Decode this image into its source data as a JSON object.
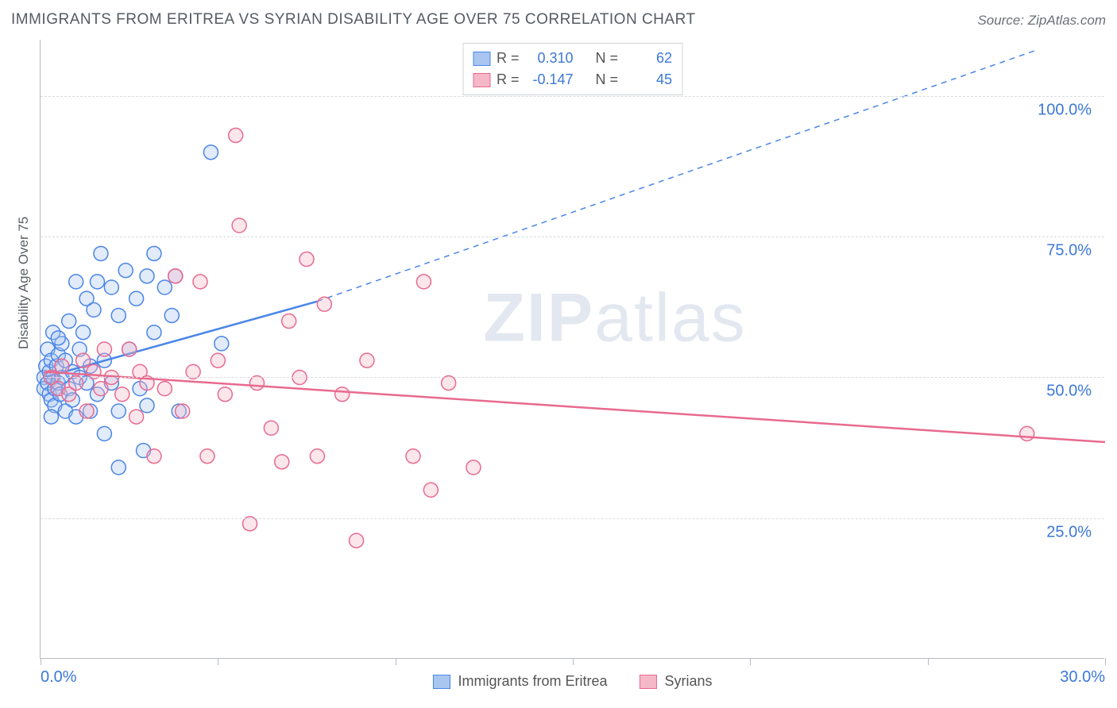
{
  "title": "IMMIGRANTS FROM ERITREA VS SYRIAN DISABILITY AGE OVER 75 CORRELATION CHART",
  "source": "Source: ZipAtlas.com",
  "watermark_a": "ZIP",
  "watermark_b": "atlas",
  "y_axis_title": "Disability Age Over 75",
  "chart": {
    "type": "scatter-with-regression",
    "xlim": [
      0,
      30
    ],
    "ylim": [
      0,
      110
    ],
    "x_ticks": [
      0,
      5,
      10,
      15,
      20,
      25,
      30
    ],
    "x_tick_labels": {
      "0": "0.0%",
      "30": "30.0%"
    },
    "y_gridlines": [
      25,
      50,
      75,
      100
    ],
    "y_tick_labels": {
      "25": "25.0%",
      "50": "50.0%",
      "75": "75.0%",
      "100": "100.0%"
    },
    "grid_color": "#d8dbdf",
    "axis_color": "#b7bcc2",
    "background_color": "#ffffff",
    "tick_label_color": "#3c78d8",
    "tick_label_fontsize": 20,
    "axis_title_fontsize": 17,
    "marker_radius": 9,
    "marker_stroke_width": 1.5,
    "marker_fill_opacity": 0.35,
    "regression_line_width": 2.5,
    "regression_dash": "7,6"
  },
  "series": [
    {
      "name": "Immigrants from Eritrea",
      "color_stroke": "#4a86e8",
      "color_fill": "#a8c6f0",
      "R": "0.310",
      "N": "62",
      "regression": {
        "x1": 0.1,
        "y1": 50,
        "x2_solid": 7.8,
        "y2_solid": 63.5,
        "x2_dash": 28,
        "y2_dash": 108
      },
      "points": [
        [
          0.1,
          50
        ],
        [
          0.1,
          48
        ],
        [
          0.15,
          52
        ],
        [
          0.2,
          49
        ],
        [
          0.2,
          55
        ],
        [
          0.25,
          47
        ],
        [
          0.25,
          51
        ],
        [
          0.3,
          53
        ],
        [
          0.3,
          46
        ],
        [
          0.35,
          50
        ],
        [
          0.35,
          58
        ],
        [
          0.4,
          48
        ],
        [
          0.4,
          45
        ],
        [
          0.45,
          52
        ],
        [
          0.5,
          49
        ],
        [
          0.5,
          54
        ],
        [
          0.55,
          47
        ],
        [
          0.6,
          56
        ],
        [
          0.6,
          50
        ],
        [
          0.7,
          44
        ],
        [
          0.7,
          53
        ],
        [
          0.8,
          48
        ],
        [
          0.8,
          60
        ],
        [
          0.9,
          51
        ],
        [
          0.9,
          46
        ],
        [
          1.0,
          67
        ],
        [
          1.0,
          43
        ],
        [
          1.1,
          55
        ],
        [
          1.1,
          50
        ],
        [
          1.2,
          58
        ],
        [
          1.3,
          49
        ],
        [
          1.3,
          64
        ],
        [
          1.4,
          44
        ],
        [
          1.4,
          52
        ],
        [
          1.6,
          67
        ],
        [
          1.6,
          47
        ],
        [
          1.7,
          72
        ],
        [
          1.8,
          40
        ],
        [
          1.8,
          53
        ],
        [
          2.0,
          66
        ],
        [
          2.0,
          49
        ],
        [
          2.2,
          61
        ],
        [
          2.2,
          44
        ],
        [
          2.4,
          69
        ],
        [
          2.5,
          55
        ],
        [
          2.7,
          64
        ],
        [
          2.8,
          48
        ],
        [
          2.9,
          37
        ],
        [
          3.0,
          68
        ],
        [
          3.0,
          45
        ],
        [
          3.2,
          72
        ],
        [
          3.2,
          58
        ],
        [
          3.5,
          66
        ],
        [
          3.7,
          61
        ],
        [
          3.8,
          68
        ],
        [
          3.9,
          44
        ],
        [
          4.8,
          90
        ],
        [
          5.1,
          56
        ],
        [
          2.2,
          34
        ],
        [
          1.5,
          62
        ],
        [
          0.5,
          57
        ],
        [
          0.3,
          43
        ]
      ]
    },
    {
      "name": "Syrians",
      "color_stroke": "#e86a8f",
      "color_fill": "#f4b8c9",
      "R": "-0.147",
      "N": "45",
      "regression": {
        "x1": 0.1,
        "y1": 51,
        "x2_solid": 30,
        "y2_solid": 38.5,
        "x2_dash": 30,
        "y2_dash": 38.5
      },
      "points": [
        [
          0.3,
          50
        ],
        [
          0.5,
          48
        ],
        [
          0.6,
          52
        ],
        [
          0.8,
          47
        ],
        [
          1.0,
          49
        ],
        [
          1.2,
          53
        ],
        [
          1.3,
          44
        ],
        [
          1.5,
          51
        ],
        [
          1.7,
          48
        ],
        [
          1.8,
          55
        ],
        [
          2.0,
          50
        ],
        [
          2.3,
          47
        ],
        [
          2.5,
          55
        ],
        [
          2.7,
          43
        ],
        [
          2.8,
          51
        ],
        [
          3.0,
          49
        ],
        [
          3.2,
          36
        ],
        [
          3.5,
          48
        ],
        [
          3.8,
          68
        ],
        [
          4.0,
          44
        ],
        [
          4.3,
          51
        ],
        [
          4.5,
          67
        ],
        [
          4.7,
          36
        ],
        [
          5.0,
          53
        ],
        [
          5.2,
          47
        ],
        [
          5.5,
          93
        ],
        [
          5.6,
          77
        ],
        [
          5.9,
          24
        ],
        [
          6.1,
          49
        ],
        [
          6.5,
          41
        ],
        [
          6.8,
          35
        ],
        [
          7.0,
          60
        ],
        [
          7.3,
          50
        ],
        [
          7.5,
          71
        ],
        [
          7.8,
          36
        ],
        [
          8.0,
          63
        ],
        [
          8.5,
          47
        ],
        [
          8.9,
          21
        ],
        [
          9.2,
          53
        ],
        [
          10.5,
          36
        ],
        [
          10.8,
          67
        ],
        [
          12.2,
          34
        ],
        [
          11.5,
          49
        ],
        [
          11.0,
          30
        ],
        [
          27.8,
          40
        ]
      ]
    }
  ],
  "legend_top_labels": {
    "R": "R  =",
    "N": "N  ="
  },
  "legend_bottom": [
    {
      "label": "Immigrants from Eritrea",
      "series": 0
    },
    {
      "label": "Syrians",
      "series": 1
    }
  ]
}
